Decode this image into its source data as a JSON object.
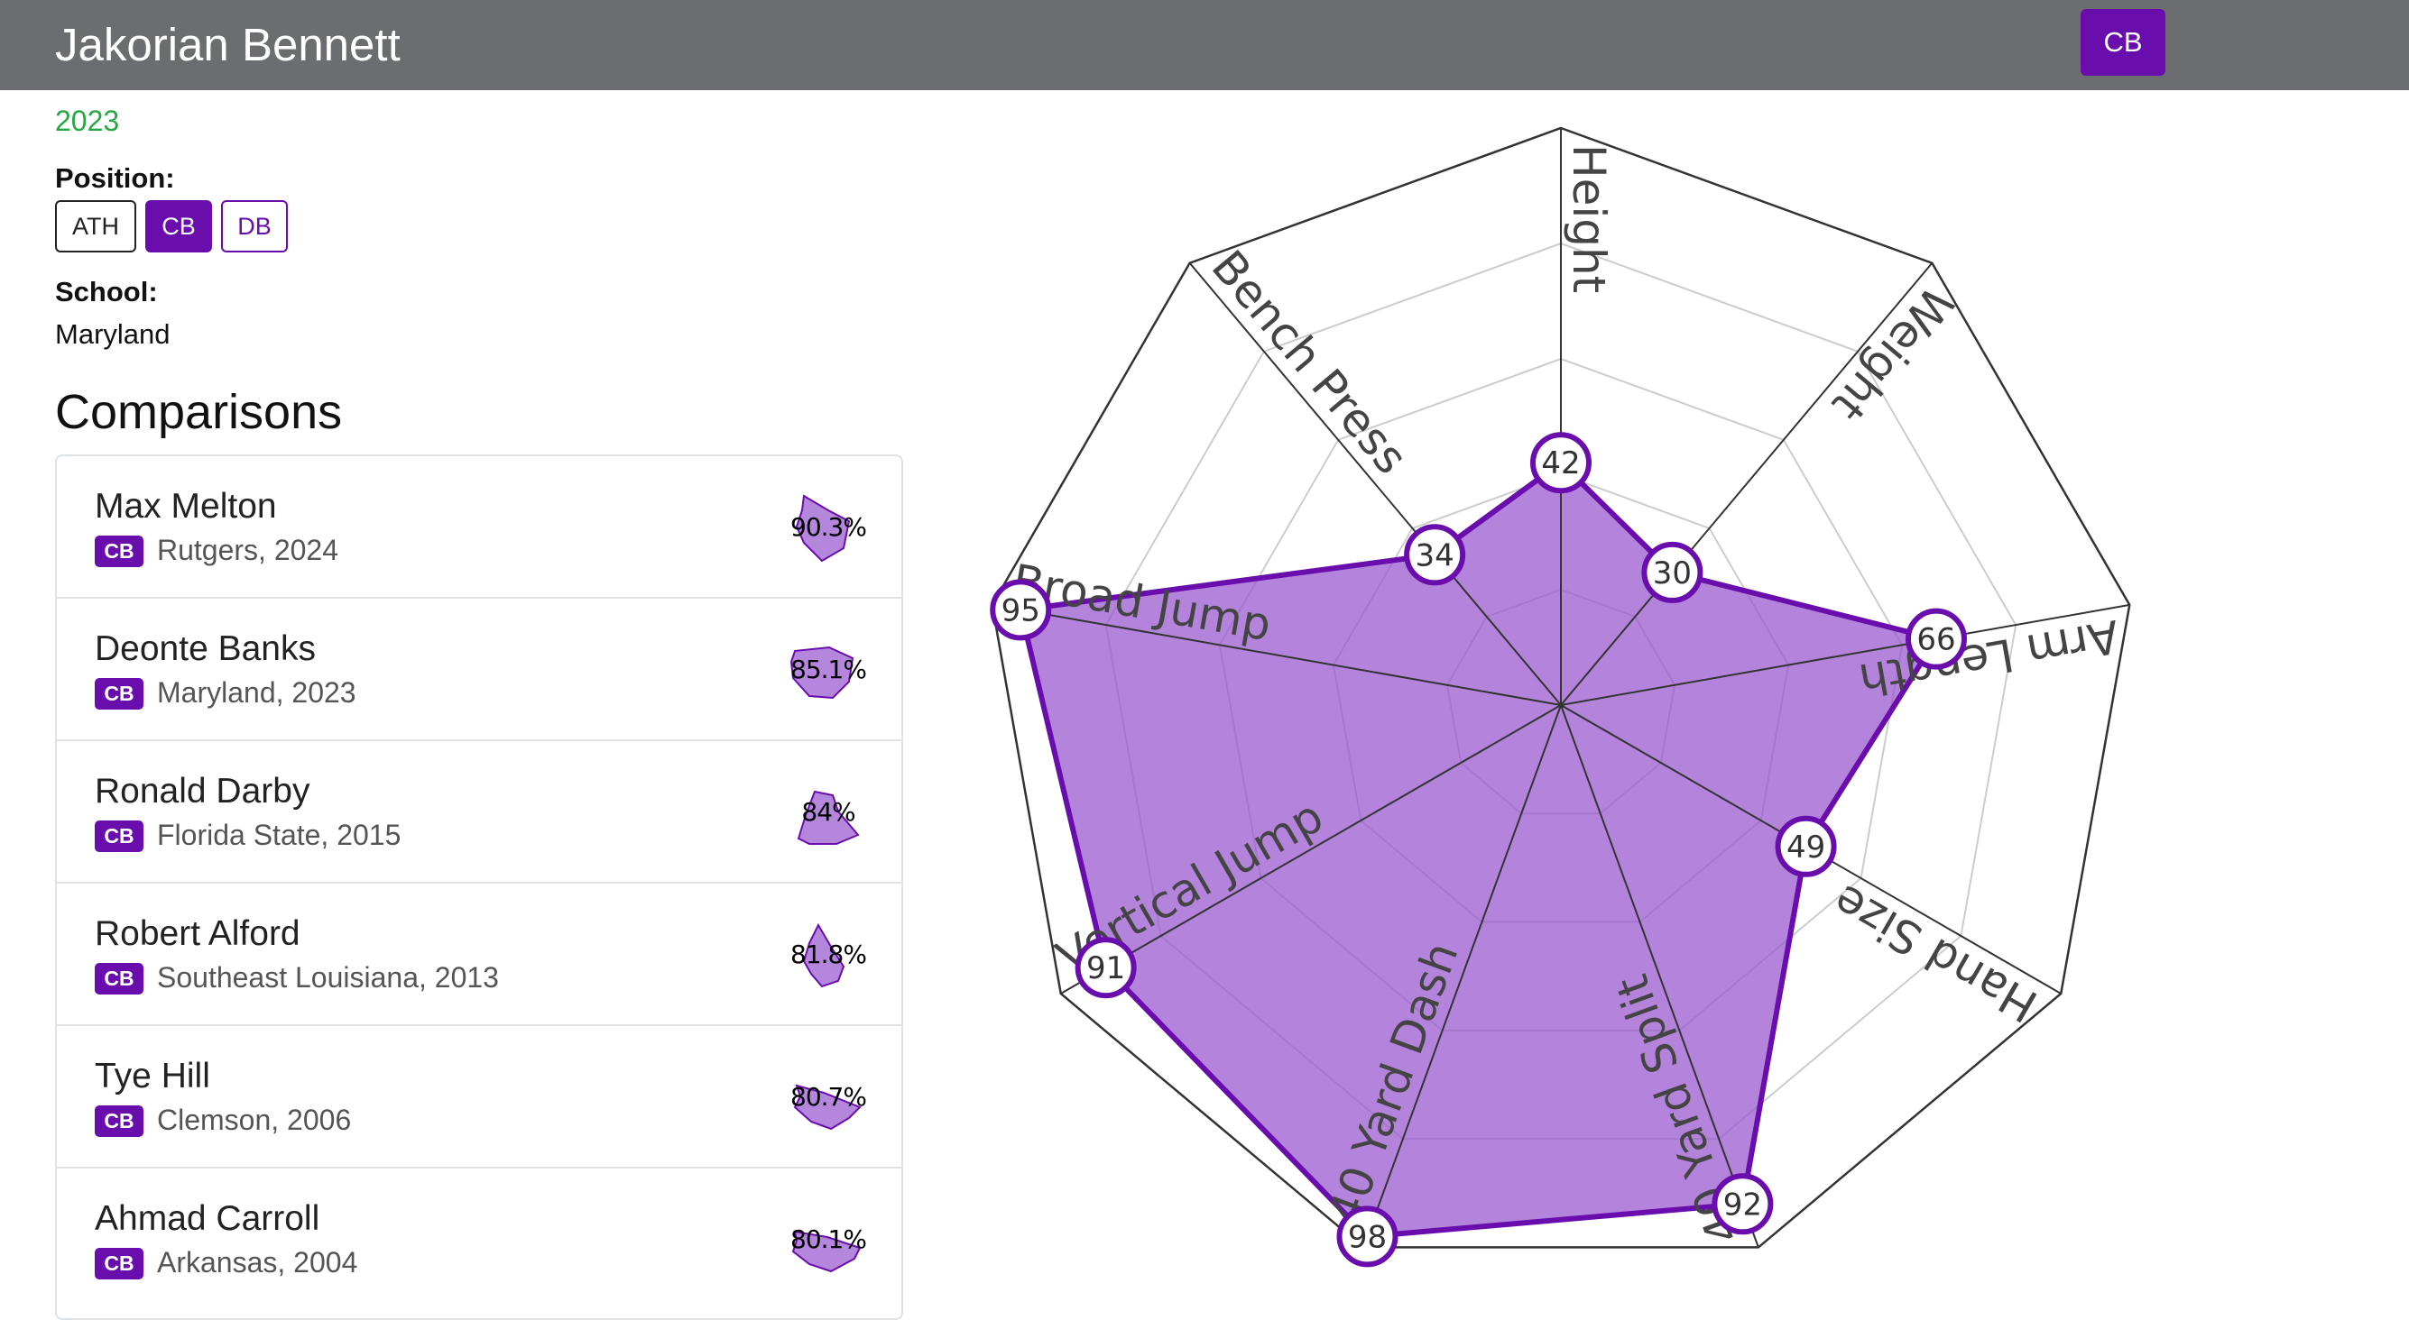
{
  "header": {
    "title": "Jakorian Bennett",
    "position_button": "CB"
  },
  "player": {
    "year": "2023",
    "position_label": "Position:",
    "positions": [
      "ATH",
      "CB",
      "DB"
    ],
    "school_label": "School:",
    "school": "Maryland"
  },
  "comparisons": {
    "heading": "Comparisons",
    "items": [
      {
        "name": "Max Melton",
        "badge": "CB",
        "sub": "Rutgers, 2024",
        "pct": "90.3%"
      },
      {
        "name": "Deonte Banks",
        "badge": "CB",
        "sub": "Maryland, 2023",
        "pct": "85.1%"
      },
      {
        "name": "Ronald Darby",
        "badge": "CB",
        "sub": "Florida State, 2015",
        "pct": "84%"
      },
      {
        "name": "Robert Alford",
        "badge": "CB",
        "sub": "Southeast Louisiana, 2013",
        "pct": "81.8%"
      },
      {
        "name": "Tye Hill",
        "badge": "CB",
        "sub": "Clemson, 2006",
        "pct": "80.7%"
      },
      {
        "name": "Ahmad Carroll",
        "badge": "CB",
        "sub": "Arkansas, 2004",
        "pct": "80.1%"
      }
    ]
  },
  "colors": {
    "accent": "#6a0dad",
    "fill": "#9b59d0",
    "year_green": "#28a745",
    "topbar": "#6c6d70"
  },
  "chart_data": {
    "type": "radar",
    "categories": [
      "Height",
      "Weight",
      "Arm Length",
      "Hand Size",
      "40 Yard Split",
      "40 Yard Dash",
      "Vertical Jump",
      "Broad Jump",
      "Bench Press"
    ],
    "values": [
      42,
      30,
      66,
      49,
      92,
      98,
      91,
      95,
      34
    ],
    "range": [
      0,
      100
    ],
    "grid_rings": [
      20,
      40,
      60,
      80,
      100
    ],
    "grid": true
  }
}
